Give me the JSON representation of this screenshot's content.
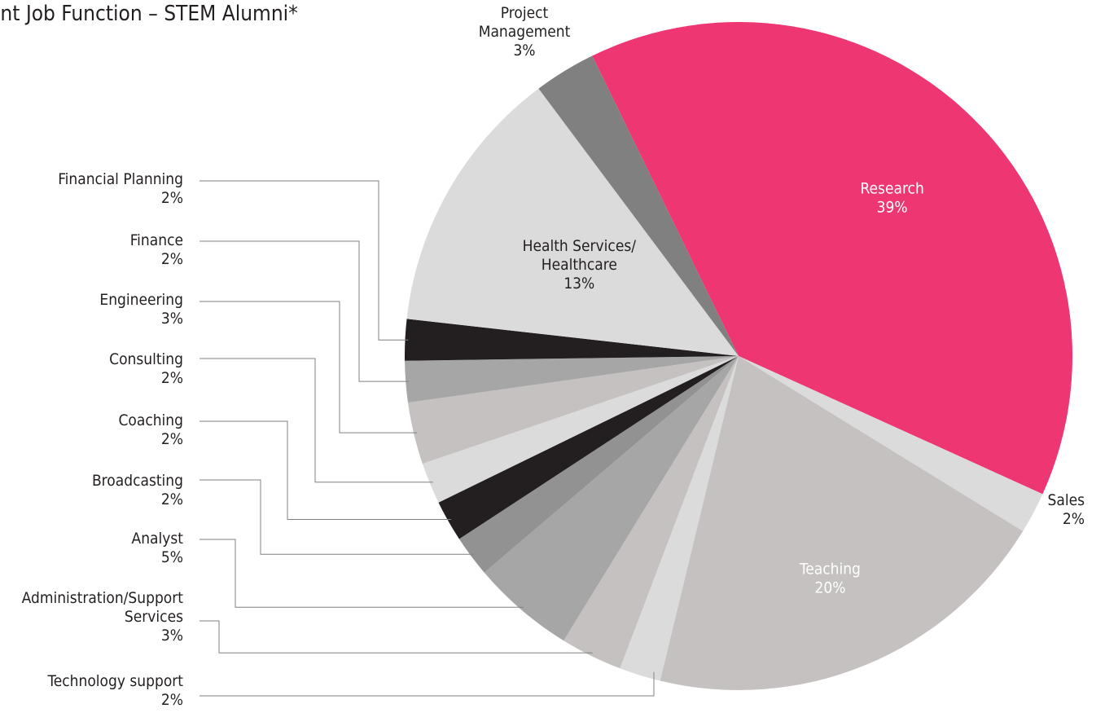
{
  "chart_data": {
    "type": "pie",
    "title": "ent Job Function – STEM Alumni*",
    "legend": "none",
    "slices": [
      {
        "label": "Research",
        "value": 39,
        "pct": "39%",
        "color": "#ee3672"
      },
      {
        "label": "Sales",
        "value": 2,
        "pct": "2%",
        "color": "#dcdbdc"
      },
      {
        "label": "Teaching",
        "value": 20,
        "pct": "20%",
        "color": "#c5c1c0"
      },
      {
        "label": "Technology support",
        "value": 2,
        "pct": "2%",
        "color": "#dcdbdc"
      },
      {
        "label": "Administration/Support Services",
        "value": 3,
        "pct": "3%",
        "color": "#c5c1c0"
      },
      {
        "label": "Analyst",
        "value": 5,
        "pct": "5%",
        "color": "#a7a6a6"
      },
      {
        "label": "Broadcasting",
        "value": 2,
        "pct": "2%",
        "color": "#939293"
      },
      {
        "label": "Coaching",
        "value": 2,
        "pct": "2%",
        "color": "#231f20"
      },
      {
        "label": "Consulting",
        "value": 2,
        "pct": "2%",
        "color": "#dcdbdc"
      },
      {
        "label": "Engineering",
        "value": 3,
        "pct": "3%",
        "color": "#c5c1c0"
      },
      {
        "label": "Finance",
        "value": 2,
        "pct": "2%",
        "color": "#a7a6a6"
      },
      {
        "label": "Financial Planning",
        "value": 2,
        "pct": "2%",
        "color": "#231f20"
      },
      {
        "label": "Health Services/ Healthcare",
        "value": 13,
        "pct": "13%",
        "color": "#dcdbdc"
      },
      {
        "label": "Project Management",
        "value": 3,
        "pct": "3%",
        "color": "#808080"
      }
    ]
  }
}
